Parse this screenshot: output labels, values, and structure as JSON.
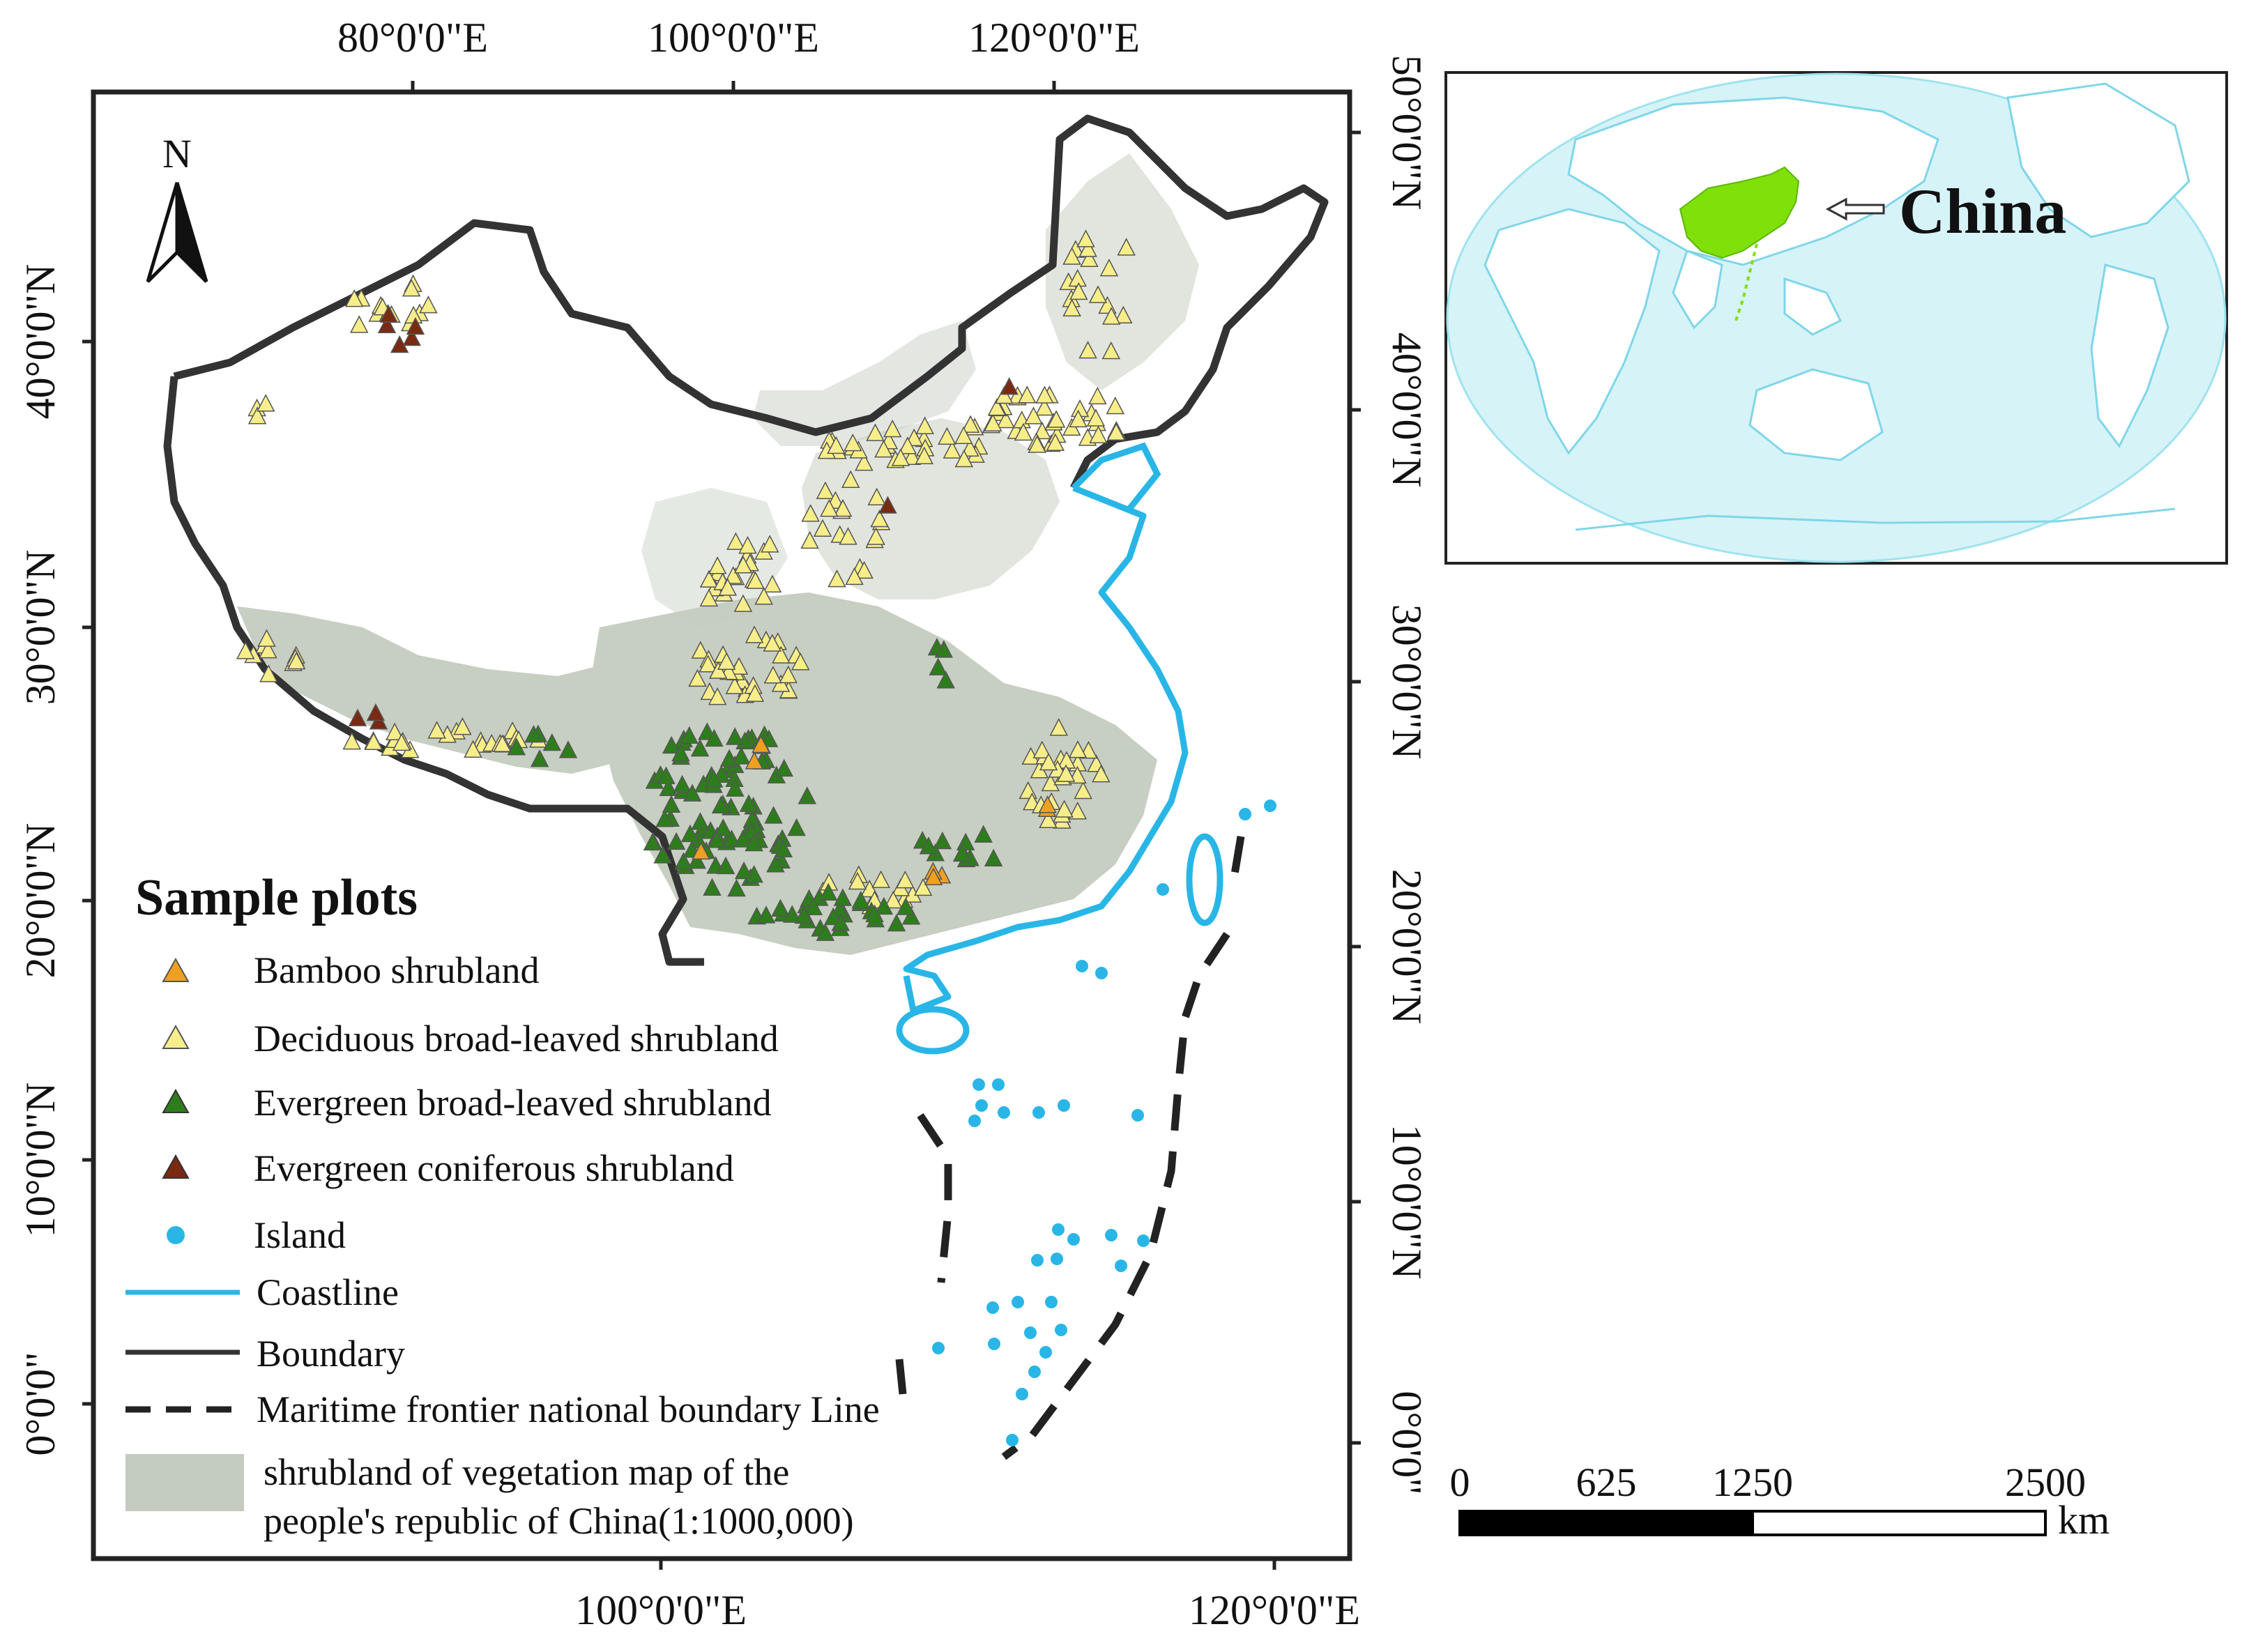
{
  "map": {
    "top_ticks": [
      "80°0'0\"E",
      "100°0'0\"E",
      "120°0'0\"E"
    ],
    "bottom_ticks": [
      "100°0'0\"E",
      "120°0'0\"E"
    ],
    "left_ticks": [
      "40°0'0\"N",
      "30°0'0\"N",
      "20°0'0\"N",
      "10°0'0\"N",
      "0°0'0\""
    ],
    "right_ticks": [
      "50°0'0\"N",
      "40°0'0\"N",
      "30°0'0\"N",
      "20°0'0\"N",
      "10°0'0\"N",
      "0°0'0\""
    ],
    "north_label": "N"
  },
  "legend": {
    "title": "Sample plots",
    "items": [
      {
        "label": "Bamboo shrubland",
        "color": "#f0a020",
        "symbol": "triangle"
      },
      {
        "label": "Deciduous broad-leaved shrubland",
        "color": "#f7ee8a",
        "symbol": "triangle"
      },
      {
        "label": "Evergreen broad-leaved shrubland",
        "color": "#2e7d1c",
        "symbol": "triangle"
      },
      {
        "label": "Evergreen coniferous shrubland",
        "color": "#7a2a12",
        "symbol": "triangle"
      },
      {
        "label": "Island",
        "color": "#29b6e6",
        "symbol": "dot"
      }
    ],
    "lines": [
      {
        "label": "Coastline",
        "color": "#29b6e6",
        "style": "solid"
      },
      {
        "label": "Boundary",
        "color": "#333333",
        "style": "solid"
      },
      {
        "label": "Maritime frontier national boundary Line",
        "color": "#222222",
        "style": "dashed"
      }
    ],
    "patch": {
      "label_line1": "shrubland of vegetation map of the",
      "label_line2": "people's republic of China(1:1000,000)",
      "color": "#c4ccbf"
    }
  },
  "inset": {
    "label": "China",
    "ocean_color": "#d6f3f8",
    "land_color": "#ffffff",
    "highlight_color": "#7fe00a"
  },
  "scalebar": {
    "labels": [
      "0",
      "625",
      "1250",
      "2500"
    ],
    "unit": "km"
  }
}
